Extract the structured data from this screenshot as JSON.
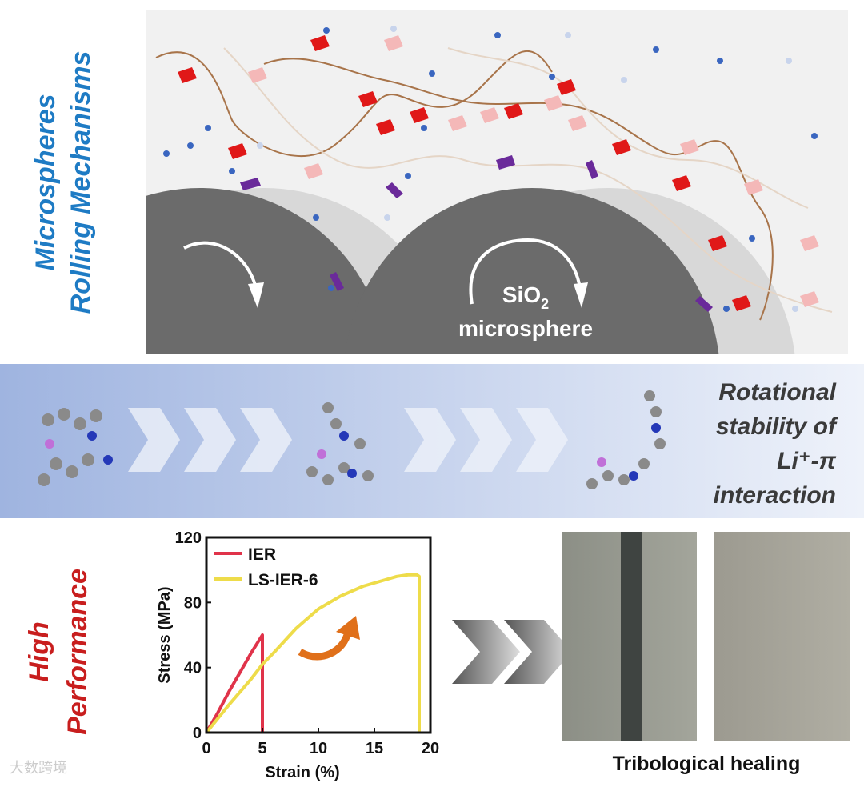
{
  "top": {
    "title_line1": "Microspheres",
    "title_line2": "Rolling Mechanisms",
    "sphere_label": {
      "formula": "SiO",
      "subscript": "2",
      "word": "microsphere"
    }
  },
  "middle": {
    "lines": [
      "Rotational",
      "stability of",
      "Li⁺-π",
      "interaction"
    ]
  },
  "bottom": {
    "title_line1": "High",
    "title_line2": "Performance",
    "photo_caption": "Tribological healing"
  },
  "watermark": "大数跨境",
  "chart_data": {
    "type": "line",
    "xlabel": "Strain (%)",
    "ylabel": "Stress (MPa)",
    "xlim": [
      0,
      20
    ],
    "ylim": [
      0,
      120
    ],
    "xticks": [
      0,
      5,
      10,
      15,
      20
    ],
    "yticks": [
      0,
      40,
      80,
      120
    ],
    "series": [
      {
        "name": "IER",
        "color": "#e0334a",
        "x": [
          0,
          1,
          2,
          3,
          4,
          5,
          5
        ],
        "values": [
          0,
          12,
          25,
          37,
          49,
          60,
          0
        ]
      },
      {
        "name": "LS-IER-6",
        "color": "#eedc4a",
        "x": [
          0,
          2,
          4,
          5,
          6,
          8,
          10,
          12,
          14,
          16,
          17,
          18,
          18.8,
          19,
          19
        ],
        "values": [
          0,
          17,
          33,
          42,
          49,
          64,
          76,
          84,
          90,
          94,
          96,
          97,
          97,
          96,
          0
        ]
      }
    ]
  }
}
